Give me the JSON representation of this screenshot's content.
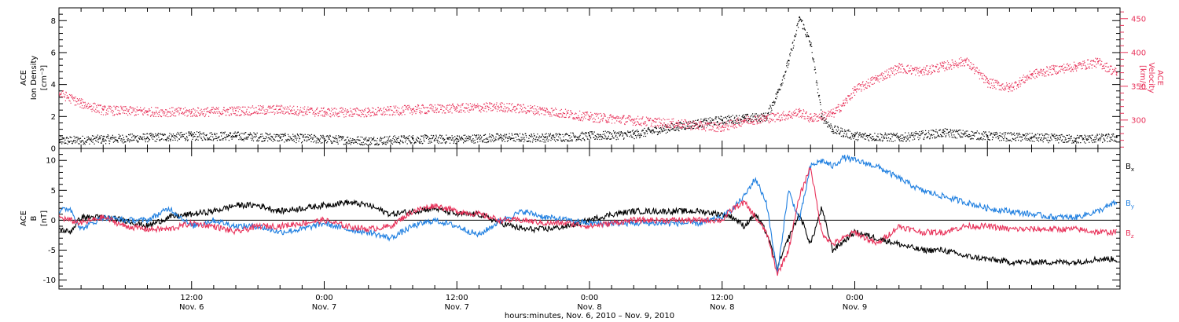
{
  "colors": {
    "black": "#000000",
    "pink": "#e8325a",
    "blue": "#1f7fe0"
  },
  "chart_data": [
    {
      "type": "scatter",
      "panel": "top",
      "x_range_hours": [
        0,
        96
      ],
      "left_axis": {
        "title_lines": [
          "ACE",
          "Ion Density"
        ],
        "unit": "[cm⁻³]",
        "ylim": [
          0,
          8.8
        ],
        "ticks": [
          0,
          2,
          4,
          6,
          8
        ]
      },
      "right_axis": {
        "title_lines": [
          "ACE",
          "Velocity"
        ],
        "unit": "[km/s]",
        "ylim": [
          258,
          466
        ],
        "ticks": [
          300,
          350,
          400,
          450
        ]
      },
      "series": [
        {
          "color_key": "black",
          "axis": "left",
          "x": [
            0,
            4,
            8,
            12,
            16,
            20,
            24,
            28,
            32,
            36,
            40,
            44,
            48,
            52,
            56,
            60,
            62,
            64,
            65,
            66,
            67,
            68,
            69,
            70,
            72,
            76,
            80,
            84,
            88,
            92,
            95.7
          ],
          "y": [
            0.5,
            0.6,
            0.7,
            0.8,
            0.8,
            0.7,
            0.6,
            0.5,
            0.6,
            0.6,
            0.7,
            0.7,
            0.8,
            0.9,
            1.4,
            1.8,
            1.9,
            2.0,
            3.5,
            5.5,
            8.2,
            6.5,
            2.0,
            1.2,
            0.8,
            0.7,
            1.0,
            0.8,
            0.7,
            0.6,
            0.7
          ]
        },
        {
          "color_key": "pink",
          "axis": "right",
          "x": [
            0,
            2,
            4,
            8,
            12,
            16,
            20,
            24,
            28,
            32,
            36,
            40,
            44,
            48,
            52,
            54,
            56,
            58,
            60,
            62,
            64,
            66,
            67,
            68,
            70,
            71,
            72,
            74,
            76,
            78,
            80,
            82,
            84,
            86,
            88,
            90,
            92,
            94,
            95.7
          ],
          "y": [
            340,
            325,
            315,
            313,
            312,
            314,
            316,
            312,
            312,
            316,
            318,
            320,
            314,
            305,
            300,
            297,
            295,
            292,
            290,
            300,
            303,
            308,
            312,
            303,
            310,
            325,
            345,
            362,
            378,
            372,
            380,
            388,
            356,
            348,
            368,
            375,
            380,
            386,
            370
          ]
        }
      ]
    },
    {
      "type": "line",
      "panel": "bottom",
      "x_range_hours": [
        0,
        96
      ],
      "left_axis": {
        "title_lines": [
          "ACE",
          "B"
        ],
        "unit": "[nT]",
        "ylim": [
          -11.5,
          12
        ],
        "ticks": [
          -10,
          -5,
          0,
          5,
          10
        ]
      },
      "legend": [
        {
          "label": "B",
          "sub": "x",
          "color_key": "black"
        },
        {
          "label": "B",
          "sub": "y",
          "color_key": "blue"
        },
        {
          "label": "B",
          "sub": "z",
          "color_key": "pink"
        }
      ],
      "series": [
        {
          "color_key": "black",
          "x": [
            0,
            1,
            2,
            4,
            6,
            8,
            10,
            12,
            14,
            16,
            18,
            20,
            22,
            24,
            26,
            28,
            30,
            32,
            34,
            36,
            38,
            40,
            42,
            44,
            46,
            48,
            50,
            52,
            54,
            56,
            58,
            60,
            61,
            62,
            63,
            64,
            65,
            66,
            67,
            68,
            69,
            70,
            72,
            74,
            76,
            78,
            80,
            82,
            84,
            86,
            88,
            90,
            92,
            94,
            95.7
          ],
          "y": [
            -1.5,
            -2.0,
            0.5,
            0.5,
            0.0,
            -1.0,
            0.5,
            1.0,
            1.5,
            2.5,
            2.5,
            1.5,
            2.0,
            2.5,
            3.0,
            2.5,
            1.0,
            1.5,
            2.0,
            1.0,
            1.0,
            -0.5,
            -1.5,
            -1.5,
            -1.0,
            0.0,
            1.0,
            1.5,
            1.5,
            1.5,
            1.5,
            1.0,
            0.5,
            -1.0,
            1.0,
            -2.0,
            -8.0,
            -3.0,
            1.0,
            -4.0,
            2.0,
            -5.0,
            -2.0,
            -3.0,
            -4.0,
            -5.0,
            -5.0,
            -6.0,
            -6.5,
            -7.0,
            -7.0,
            -7.0,
            -7.0,
            -6.5,
            -6.5
          ]
        },
        {
          "color_key": "blue",
          "x": [
            0,
            1,
            2,
            4,
            6,
            8,
            10,
            12,
            14,
            16,
            18,
            20,
            22,
            24,
            26,
            28,
            30,
            32,
            34,
            36,
            38,
            40,
            42,
            44,
            46,
            48,
            50,
            52,
            54,
            56,
            58,
            60,
            61,
            62,
            63,
            64,
            65,
            66,
            67,
            68,
            69,
            70,
            71,
            72,
            74,
            76,
            78,
            80,
            82,
            84,
            86,
            88,
            90,
            92,
            94,
            95.7
          ],
          "y": [
            1.5,
            2.0,
            -1.5,
            0.5,
            0.0,
            0.0,
            2.0,
            -1.0,
            0.0,
            -1.0,
            -1.0,
            -2.0,
            -1.5,
            -0.5,
            -1.5,
            -2.0,
            -3.0,
            -1.0,
            0.0,
            -1.0,
            -2.5,
            0.0,
            1.5,
            0.5,
            0.0,
            -0.5,
            -0.5,
            -0.5,
            -0.5,
            -0.5,
            -0.5,
            0.5,
            2.0,
            4.0,
            7.0,
            3.0,
            -9.0,
            5.0,
            0.0,
            9.0,
            10.0,
            9.0,
            10.5,
            10.0,
            9.0,
            7.0,
            5.0,
            4.0,
            3.0,
            2.0,
            1.5,
            1.0,
            0.5,
            0.5,
            1.5,
            3.0
          ]
        },
        {
          "color_key": "pink",
          "x": [
            0,
            1,
            2,
            4,
            6,
            8,
            10,
            12,
            14,
            16,
            18,
            20,
            22,
            24,
            26,
            28,
            30,
            32,
            34,
            36,
            38,
            40,
            42,
            44,
            46,
            48,
            50,
            52,
            54,
            56,
            58,
            60,
            61,
            62,
            63,
            64,
            65,
            66,
            67,
            68,
            69,
            70,
            72,
            74,
            76,
            78,
            80,
            82,
            84,
            86,
            88,
            90,
            92,
            94,
            95.7
          ],
          "y": [
            0.5,
            0.0,
            -0.5,
            0.5,
            -1.0,
            -1.5,
            -1.5,
            -0.5,
            -1.0,
            -2.0,
            -1.0,
            -1.0,
            -0.5,
            0.0,
            -1.0,
            -1.5,
            -1.0,
            1.5,
            2.5,
            1.5,
            1.0,
            0.0,
            0.0,
            -0.5,
            -0.5,
            -1.0,
            -0.5,
            0.0,
            0.0,
            0.0,
            0.0,
            0.0,
            2.0,
            3.0,
            0.5,
            -2.0,
            -9.0,
            -5.0,
            4.0,
            9.0,
            -2.0,
            -4.0,
            -2.0,
            -4.0,
            -1.0,
            -2.0,
            -2.0,
            -1.0,
            -1.0,
            -1.5,
            -1.5,
            -1.5,
            -1.5,
            -2.0,
            -2.0
          ]
        }
      ]
    }
  ],
  "x_axis": {
    "tick_labels": [
      {
        "time": "12:00",
        "date": "Nov. 6",
        "hour": 12
      },
      {
        "time": "0:00",
        "date": "Nov. 7",
        "hour": 24
      },
      {
        "time": "12:00",
        "date": "Nov. 7",
        "hour": 36
      },
      {
        "time": "0:00",
        "date": "Nov. 8",
        "hour": 48
      },
      {
        "time": "12:00",
        "date": "Nov. 8",
        "hour": 60
      },
      {
        "time": "0:00",
        "date": "Nov. 9",
        "hour": 72
      }
    ],
    "title": "hours:minutes, Nov.  6, 2010 – Nov.  9, 2010"
  }
}
